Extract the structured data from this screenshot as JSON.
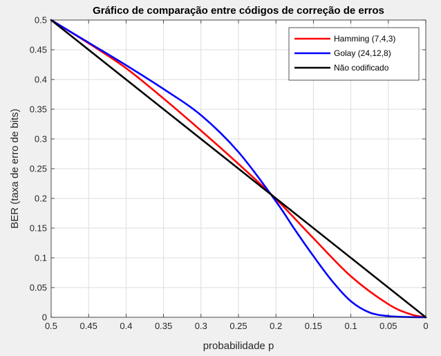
{
  "chart_data": {
    "type": "line",
    "title": "Gráfico de comparação entre códigos de correção de erros",
    "xlabel": "probabilidade p",
    "ylabel": "BER (taxa de erro de bits)",
    "xlim": [
      0.5,
      0
    ],
    "ylim": [
      0,
      0.5
    ],
    "x_reversed": true,
    "grid": true,
    "legend_position": "top-right",
    "xticks": [
      0.5,
      0.45,
      0.4,
      0.35,
      0.3,
      0.25,
      0.2,
      0.15,
      0.1,
      0.05,
      0
    ],
    "xtick_labels": [
      "0.5",
      "0.45",
      "0.4",
      "0.35",
      "0.3",
      "0.25",
      "0.2",
      "0.15",
      "0.1",
      "0.05",
      "0"
    ],
    "yticks": [
      0,
      0.05,
      0.1,
      0.15,
      0.2,
      0.25,
      0.3,
      0.35,
      0.4,
      0.45,
      0.5
    ],
    "ytick_labels": [
      "0",
      "0.05",
      "0.1",
      "0.15",
      "0.2",
      "0.25",
      "0.3",
      "0.35",
      "0.4",
      "0.45",
      "0.5"
    ],
    "series": [
      {
        "name": "Hamming (7,4,3)",
        "color": "#ff0000",
        "x": [
          0.5,
          0.45,
          0.4,
          0.35,
          0.3,
          0.25,
          0.2,
          0.15,
          0.1,
          0.05,
          0.02,
          0
        ],
        "y": [
          0.5,
          0.461,
          0.419,
          0.368,
          0.314,
          0.258,
          0.199,
          0.133,
          0.069,
          0.022,
          0.005,
          0
        ]
      },
      {
        "name": "Golay (24,12,8)",
        "color": "#0000ff",
        "x": [
          0.5,
          0.45,
          0.4,
          0.35,
          0.3,
          0.25,
          0.2,
          0.175,
          0.15,
          0.125,
          0.1,
          0.075,
          0.05,
          0.025,
          0
        ],
        "y": [
          0.5,
          0.462,
          0.424,
          0.384,
          0.34,
          0.278,
          0.195,
          0.148,
          0.103,
          0.061,
          0.027,
          0.008,
          0.002,
          0.0005,
          0
        ]
      },
      {
        "name": "Não codificado",
        "color": "#000000",
        "x": [
          0.5,
          0
        ],
        "y": [
          0.5,
          0
        ]
      }
    ]
  }
}
